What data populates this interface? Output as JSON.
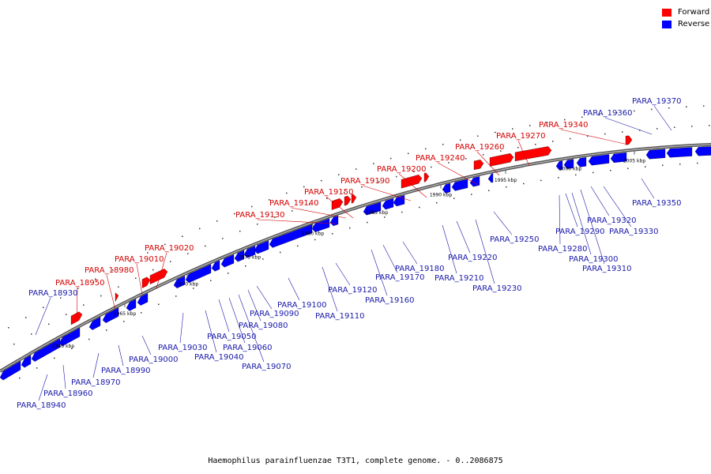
{
  "legend": {
    "forward_label": "Forward",
    "reverse_label": "Reverse",
    "forward_color": "#ff0000",
    "reverse_color": "#0000ff"
  },
  "caption": "Haemophilus parainfluenzae T3T1, complete genome. - 0..2086875",
  "scale_ticks": [
    "1960 kbp",
    "1965 kbp",
    "1970 kbp",
    "1975 kbp",
    "1980 kbp",
    "1985 kbp",
    "1990 kbp",
    "1995 kbp",
    "2000 kbp",
    "2005 kbp"
  ],
  "genes_forward": [
    "PARA_18950",
    "PARA_18980",
    "PARA_19010",
    "PARA_19020",
    "PARA_19130",
    "PARA_19140",
    "PARA_19150",
    "PARA_19190",
    "PARA_19200",
    "PARA_19240",
    "PARA_19260",
    "PARA_19270",
    "PARA_19340"
  ],
  "genes_reverse": [
    "PARA_18930",
    "PARA_18940",
    "PARA_18960",
    "PARA_18970",
    "PARA_18990",
    "PARA_19000",
    "PARA_19030",
    "PARA_19040",
    "PARA_19050",
    "PARA_19060",
    "PARA_19070",
    "PARA_19080",
    "PARA_19090",
    "PARA_19100",
    "PARA_19110",
    "PARA_19120",
    "PARA_19160",
    "PARA_19170",
    "PARA_19180",
    "PARA_19210",
    "PARA_19220",
    "PARA_19230",
    "PARA_19250",
    "PARA_19280",
    "PARA_19290",
    "PARA_19300",
    "PARA_19310",
    "PARA_19320",
    "PARA_19330",
    "PARA_19350",
    "PARA_19360",
    "PARA_19370"
  ]
}
